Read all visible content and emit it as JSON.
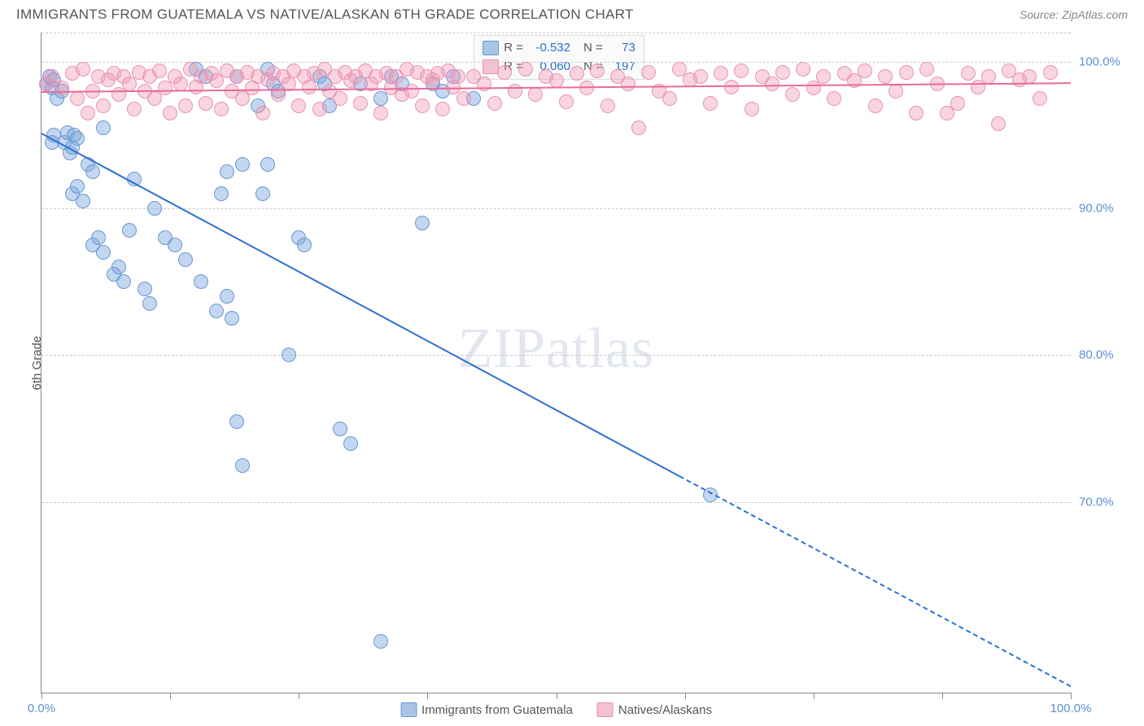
{
  "header": {
    "title": "IMMIGRANTS FROM GUATEMALA VS NATIVE/ALASKAN 6TH GRADE CORRELATION CHART",
    "source": "Source: ZipAtlas.com"
  },
  "watermark": {
    "part1": "ZIP",
    "part2": "atlas"
  },
  "chart": {
    "type": "scatter",
    "ylabel": "6th Grade",
    "xlim": [
      0,
      100
    ],
    "ylim": [
      57,
      102
    ],
    "yticks": [
      70,
      80,
      90,
      100
    ],
    "ytick_labels": [
      "70.0%",
      "80.0%",
      "90.0%",
      "100.0%"
    ],
    "xtick_positions": [
      0,
      12.5,
      25,
      37.5,
      50,
      62.5,
      75,
      87.5,
      100
    ],
    "xtick_labels_shown": {
      "0": "0.0%",
      "100": "100.0%"
    },
    "grid_color": "#cccccc",
    "background_color": "#ffffff",
    "axis_color": "#888888",
    "point_radius": 9,
    "series": [
      {
        "name": "Immigrants from Guatemala",
        "color_fill": "rgba(123,167,224,0.45)",
        "color_stroke": "#6a98d0",
        "legend_swatch_fill": "#a8c5e8",
        "legend_swatch_border": "#6a98d0",
        "R": "-0.532",
        "N": "73",
        "trend": {
          "x1": 0,
          "y1": 95.2,
          "x2": 100,
          "y2": 57.5,
          "solid_until_x": 62,
          "color": "#2d6fd2"
        },
        "points": [
          [
            0.5,
            98.5
          ],
          [
            0.8,
            99.0
          ],
          [
            1.0,
            98.2
          ],
          [
            1.2,
            98.8
          ],
          [
            1.5,
            97.5
          ],
          [
            1.0,
            94.5
          ],
          [
            1.2,
            95.0
          ],
          [
            2.0,
            98.0
          ],
          [
            2.2,
            94.5
          ],
          [
            2.5,
            95.2
          ],
          [
            2.8,
            93.8
          ],
          [
            3.0,
            94.2
          ],
          [
            3.2,
            95.0
          ],
          [
            3.5,
            94.8
          ],
          [
            3.0,
            91.0
          ],
          [
            3.5,
            91.5
          ],
          [
            4.0,
            90.5
          ],
          [
            4.5,
            93.0
          ],
          [
            5.0,
            92.5
          ],
          [
            5.5,
            88.0
          ],
          [
            6.0,
            95.5
          ],
          [
            5.0,
            87.5
          ],
          [
            6.0,
            87.0
          ],
          [
            7.0,
            85.5
          ],
          [
            7.5,
            86.0
          ],
          [
            8.0,
            85.0
          ],
          [
            8.5,
            88.5
          ],
          [
            9.0,
            92.0
          ],
          [
            10.0,
            84.5
          ],
          [
            10.5,
            83.5
          ],
          [
            11.0,
            90.0
          ],
          [
            12.0,
            88.0
          ],
          [
            13.0,
            87.5
          ],
          [
            14.0,
            86.5
          ],
          [
            15.0,
            99.5
          ],
          [
            15.5,
            85.0
          ],
          [
            16.0,
            99.0
          ],
          [
            17.0,
            83.0
          ],
          [
            17.5,
            91.0
          ],
          [
            18.0,
            84.0
          ],
          [
            18.0,
            92.5
          ],
          [
            18.5,
            82.5
          ],
          [
            19.0,
            99.0
          ],
          [
            19.5,
            93.0
          ],
          [
            19.0,
            75.5
          ],
          [
            19.5,
            72.5
          ],
          [
            21.0,
            97.0
          ],
          [
            21.5,
            91.0
          ],
          [
            22.0,
            93.0
          ],
          [
            22.0,
            99.5
          ],
          [
            22.5,
            98.5
          ],
          [
            23.0,
            98.0
          ],
          [
            24.0,
            80.0
          ],
          [
            25.0,
            88.0
          ],
          [
            25.5,
            87.5
          ],
          [
            27.0,
            99.0
          ],
          [
            27.5,
            98.5
          ],
          [
            28.0,
            97.0
          ],
          [
            29.0,
            75.0
          ],
          [
            30.0,
            74.0
          ],
          [
            31.0,
            98.5
          ],
          [
            33.0,
            97.5
          ],
          [
            33.0,
            60.5
          ],
          [
            34.0,
            99.0
          ],
          [
            35.0,
            98.5
          ],
          [
            37.0,
            89.0
          ],
          [
            38.0,
            98.5
          ],
          [
            39.0,
            98.0
          ],
          [
            40.0,
            99.0
          ],
          [
            42.0,
            97.5
          ],
          [
            65.0,
            70.5
          ]
        ]
      },
      {
        "name": "Natives/Alaskans",
        "color_fill": "rgba(240,150,180,0.40)",
        "color_stroke": "#e893b0",
        "legend_swatch_fill": "#f5c0d2",
        "legend_swatch_border": "#e893b0",
        "R": "0.060",
        "N": "197",
        "trend": {
          "x1": 0,
          "y1": 98.0,
          "x2": 100,
          "y2": 98.6,
          "solid_until_x": 100,
          "color": "#e86a9a"
        },
        "points": [
          [
            0.5,
            98.5
          ],
          [
            1,
            99
          ],
          [
            2,
            98.2
          ],
          [
            3,
            99.2
          ],
          [
            3.5,
            97.5
          ],
          [
            4,
            99.5
          ],
          [
            4.5,
            96.5
          ],
          [
            5,
            98
          ],
          [
            5.5,
            99
          ],
          [
            6,
            97
          ],
          [
            6.5,
            98.8
          ],
          [
            7,
            99.2
          ],
          [
            7.5,
            97.8
          ],
          [
            8,
            99
          ],
          [
            8.5,
            98.5
          ],
          [
            9,
            96.8
          ],
          [
            9.5,
            99.3
          ],
          [
            10,
            98
          ],
          [
            10.5,
            99
          ],
          [
            11,
            97.5
          ],
          [
            11.5,
            99.4
          ],
          [
            12,
            98.2
          ],
          [
            12.5,
            96.5
          ],
          [
            13,
            99
          ],
          [
            13.5,
            98.5
          ],
          [
            14,
            97
          ],
          [
            14.5,
            99.5
          ],
          [
            15,
            98.3
          ],
          [
            15.5,
            99
          ],
          [
            16,
            97.2
          ],
          [
            16.5,
            99.2
          ],
          [
            17,
            98.7
          ],
          [
            17.5,
            96.8
          ],
          [
            18,
            99.4
          ],
          [
            18.5,
            98
          ],
          [
            19,
            99
          ],
          [
            19.5,
            97.5
          ],
          [
            20,
            99.3
          ],
          [
            20.5,
            98.2
          ],
          [
            21,
            99
          ],
          [
            21.5,
            96.5
          ],
          [
            22,
            98.8
          ],
          [
            22.5,
            99.2
          ],
          [
            23,
            97.8
          ],
          [
            23.5,
            99
          ],
          [
            24,
            98.5
          ],
          [
            24.5,
            99.4
          ],
          [
            25,
            97
          ],
          [
            25.5,
            99
          ],
          [
            26,
            98.3
          ],
          [
            26.5,
            99.2
          ],
          [
            27,
            96.8
          ],
          [
            27.5,
            99.5
          ],
          [
            28,
            98
          ],
          [
            28.5,
            99
          ],
          [
            29,
            97.5
          ],
          [
            29.5,
            99.3
          ],
          [
            30,
            98.7
          ],
          [
            30.5,
            99
          ],
          [
            31,
            97.2
          ],
          [
            31.5,
            99.4
          ],
          [
            32,
            98.5
          ],
          [
            32.5,
            99
          ],
          [
            33,
            96.5
          ],
          [
            33.5,
            99.2
          ],
          [
            34,
            98.2
          ],
          [
            34.5,
            99
          ],
          [
            35,
            97.8
          ],
          [
            35.5,
            99.5
          ],
          [
            36,
            98
          ],
          [
            36.5,
            99.3
          ],
          [
            37,
            97
          ],
          [
            37.5,
            99
          ],
          [
            38,
            98.8
          ],
          [
            38.5,
            99.2
          ],
          [
            39,
            96.8
          ],
          [
            39.5,
            99.4
          ],
          [
            40,
            98.3
          ],
          [
            40.5,
            99
          ],
          [
            41,
            97.5
          ],
          [
            42,
            99
          ],
          [
            43,
            98.5
          ],
          [
            44,
            97.2
          ],
          [
            45,
            99.3
          ],
          [
            46,
            98
          ],
          [
            47,
            99.5
          ],
          [
            48,
            97.8
          ],
          [
            49,
            99
          ],
          [
            50,
            98.7
          ],
          [
            51,
            97.3
          ],
          [
            52,
            99.2
          ],
          [
            53,
            98.2
          ],
          [
            54,
            99.4
          ],
          [
            55,
            97
          ],
          [
            56,
            99
          ],
          [
            57,
            98.5
          ],
          [
            58,
            95.5
          ],
          [
            59,
            99.3
          ],
          [
            60,
            98
          ],
          [
            61,
            97.5
          ],
          [
            62,
            99.5
          ],
          [
            63,
            98.8
          ],
          [
            64,
            99
          ],
          [
            65,
            97.2
          ],
          [
            66,
            99.2
          ],
          [
            67,
            98.3
          ],
          [
            68,
            99.4
          ],
          [
            69,
            96.8
          ],
          [
            70,
            99
          ],
          [
            71,
            98.5
          ],
          [
            72,
            99.3
          ],
          [
            73,
            97.8
          ],
          [
            74,
            99.5
          ],
          [
            75,
            98.2
          ],
          [
            76,
            99
          ],
          [
            77,
            97.5
          ],
          [
            78,
            99.2
          ],
          [
            79,
            98.7
          ],
          [
            80,
            99.4
          ],
          [
            81,
            97
          ],
          [
            82,
            99
          ],
          [
            83,
            98
          ],
          [
            84,
            99.3
          ],
          [
            85,
            96.5
          ],
          [
            86,
            99.5
          ],
          [
            87,
            98.5
          ],
          [
            88,
            96.5
          ],
          [
            89,
            97.2
          ],
          [
            90,
            99.2
          ],
          [
            91,
            98.3
          ],
          [
            92,
            99
          ],
          [
            93,
            95.8
          ],
          [
            94,
            99.4
          ],
          [
            95,
            98.8
          ],
          [
            96,
            99
          ],
          [
            97,
            97.5
          ],
          [
            98,
            99.3
          ]
        ]
      }
    ],
    "stats_box": {
      "rows": [
        {
          "swatch": 0,
          "R_label": "R =",
          "R_val": "-0.532",
          "N_label": "N =",
          "N_val": "73"
        },
        {
          "swatch": 1,
          "R_label": "R =",
          "R_val": "0.060",
          "N_label": "N =",
          "N_val": "197"
        }
      ]
    }
  }
}
